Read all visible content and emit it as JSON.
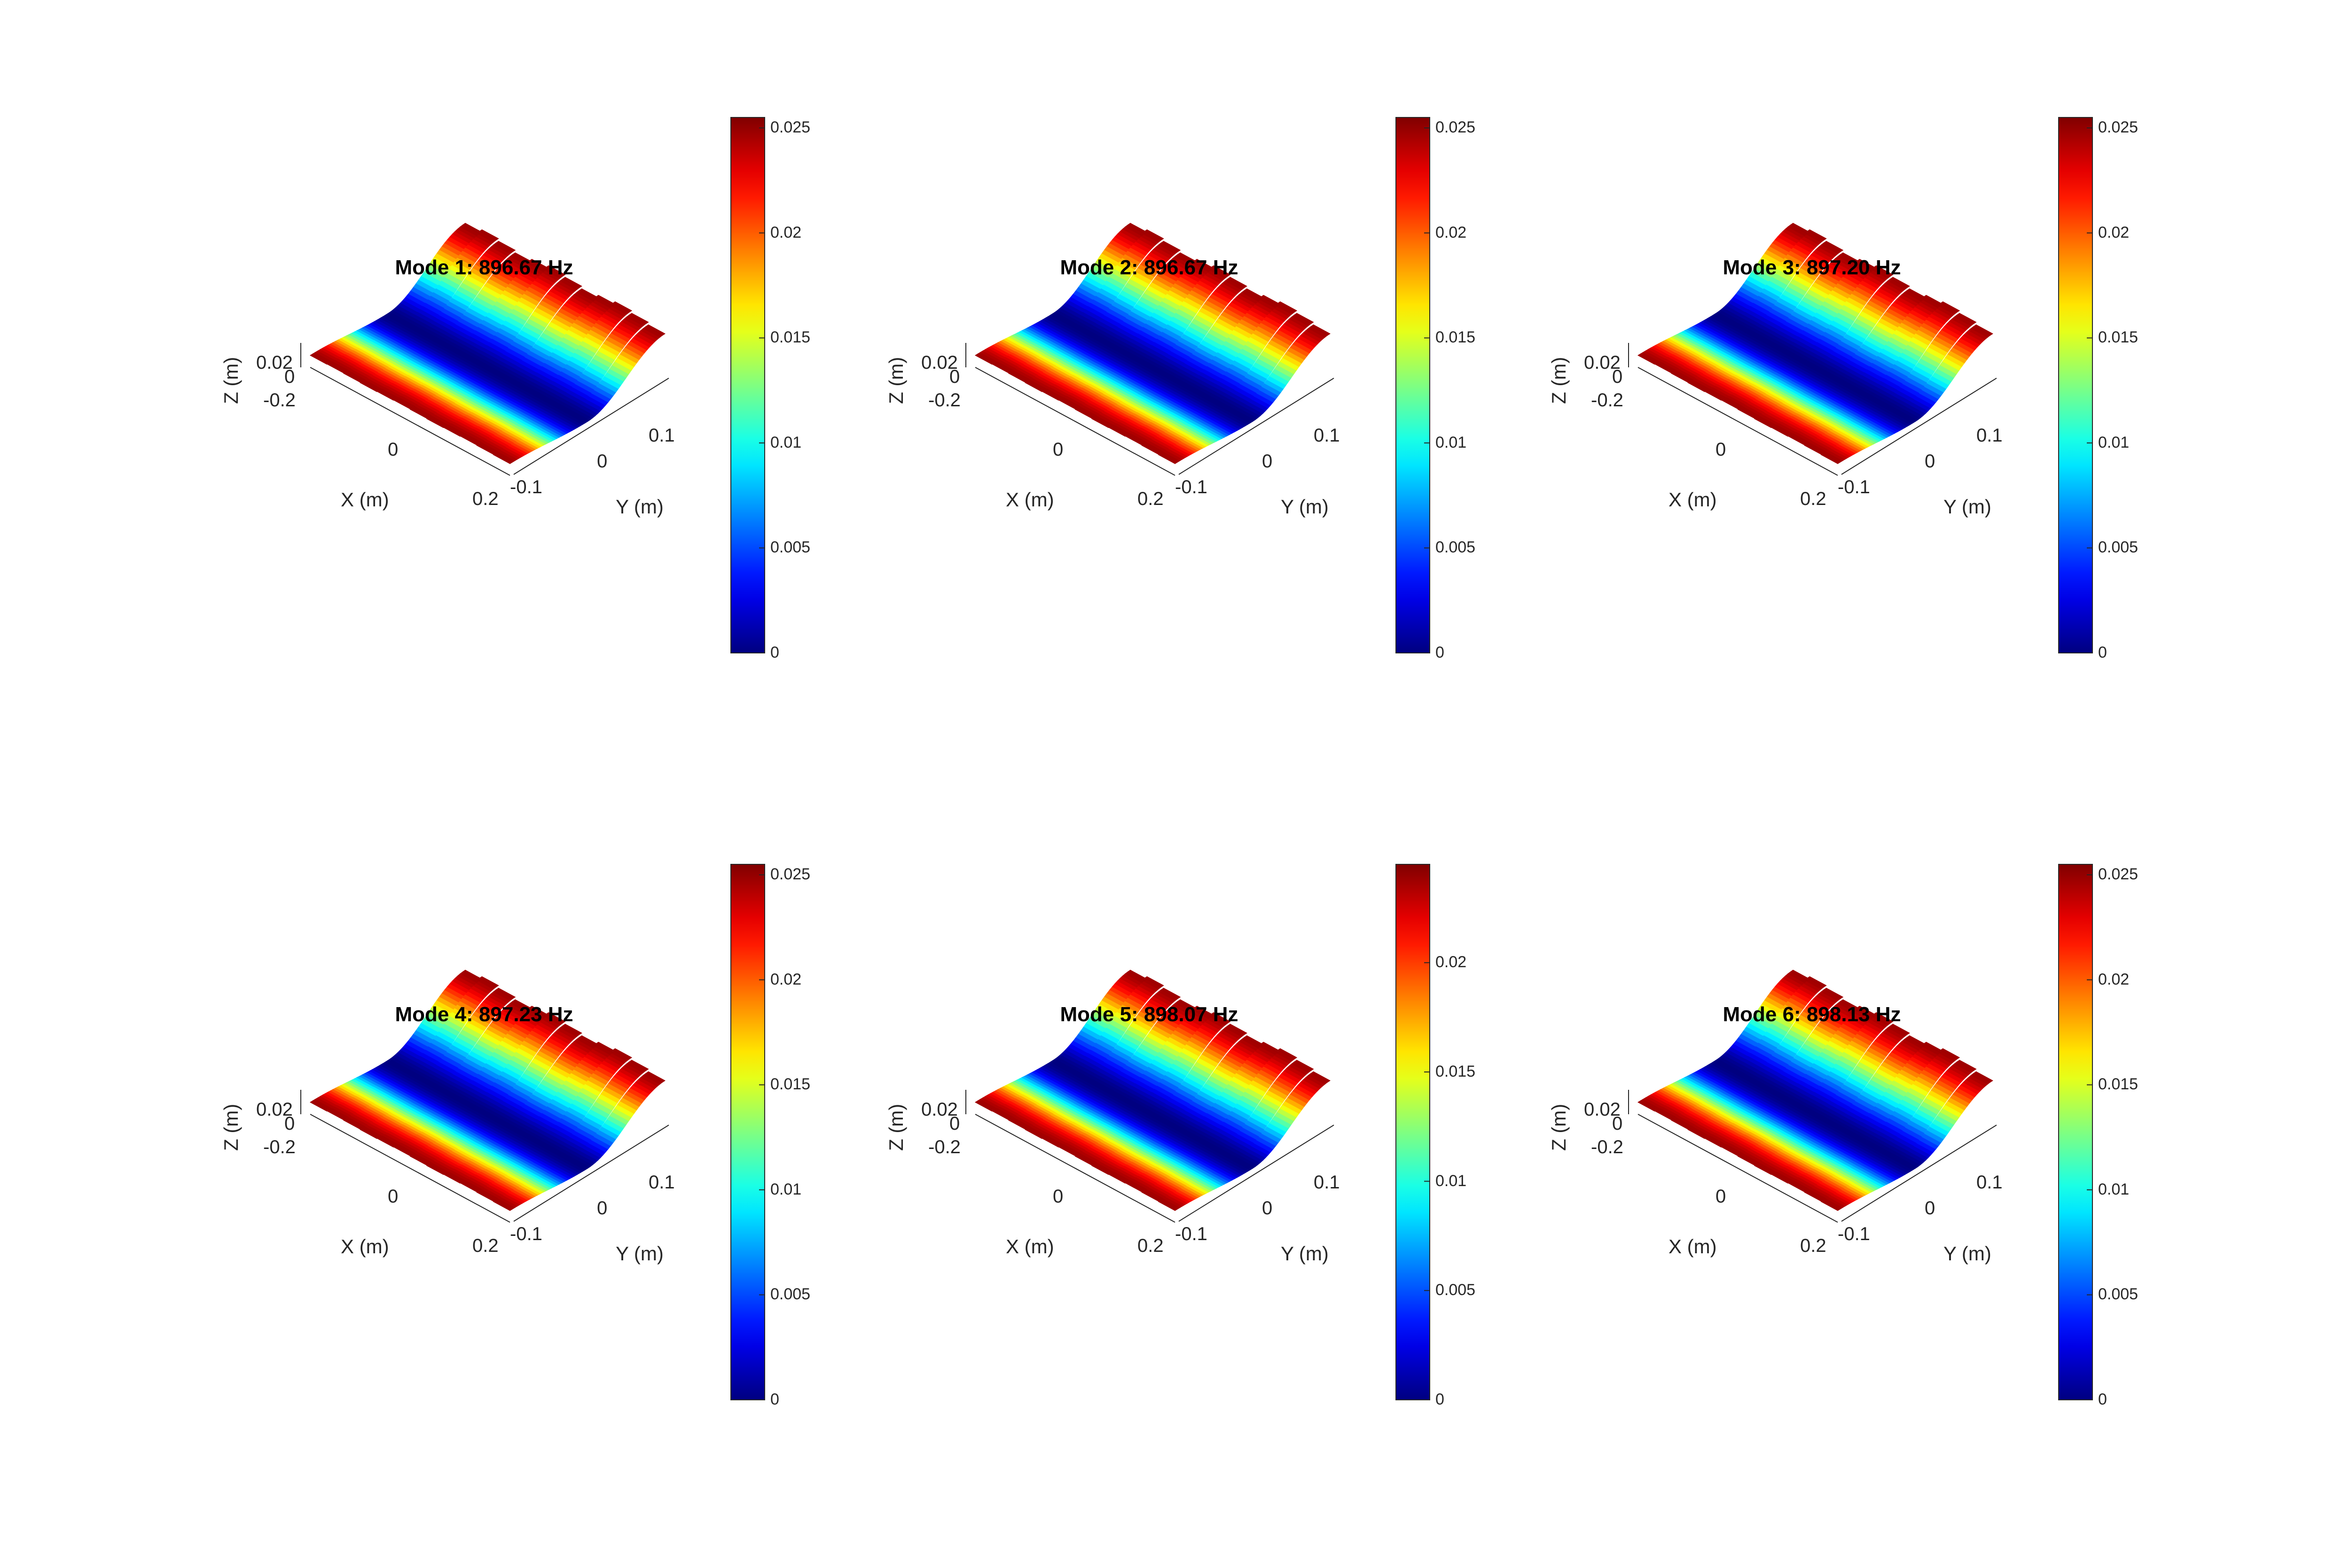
{
  "chart_data": [
    {
      "type": "heatmap",
      "title": "Mode 1: 896.67 Hz",
      "xlabel": "X (m)",
      "ylabel": "Y (m)",
      "zlabel": "Z (m)",
      "x_ticks": [
        "-0.2",
        "0",
        "0.2"
      ],
      "y_ticks": [
        "-0.1",
        "0",
        "0.1"
      ],
      "z_ticks": [
        "0",
        "0.02"
      ],
      "colorbar": {
        "min": 0,
        "max": 0.0255,
        "ticks": [
          "0",
          "0.005",
          "0.01",
          "0.015",
          "0.02",
          "0.025"
        ],
        "colormap": "jet"
      }
    },
    {
      "type": "heatmap",
      "title": "Mode 2: 896.67 Hz",
      "xlabel": "X (m)",
      "ylabel": "Y (m)",
      "zlabel": "Z (m)",
      "x_ticks": [
        "-0.2",
        "0",
        "0.2"
      ],
      "y_ticks": [
        "-0.1",
        "0",
        "0.1"
      ],
      "z_ticks": [
        "0",
        "0.02"
      ],
      "colorbar": {
        "min": 0,
        "max": 0.0255,
        "ticks": [
          "0",
          "0.005",
          "0.01",
          "0.015",
          "0.02",
          "0.025"
        ],
        "colormap": "jet"
      }
    },
    {
      "type": "heatmap",
      "title": "Mode 3: 897.20 Hz",
      "xlabel": "X (m)",
      "ylabel": "Y (m)",
      "zlabel": "Z (m)",
      "x_ticks": [
        "-0.2",
        "0",
        "0.2"
      ],
      "y_ticks": [
        "-0.1",
        "0",
        "0.1"
      ],
      "z_ticks": [
        "0",
        "0.02"
      ],
      "colorbar": {
        "min": 0,
        "max": 0.0255,
        "ticks": [
          "0",
          "0.005",
          "0.01",
          "0.015",
          "0.02",
          "0.025"
        ],
        "colormap": "jet"
      }
    },
    {
      "type": "heatmap",
      "title": "Mode 4: 897.23 Hz",
      "xlabel": "X (m)",
      "ylabel": "Y (m)",
      "zlabel": "Z (m)",
      "x_ticks": [
        "-0.2",
        "0",
        "0.2"
      ],
      "y_ticks": [
        "-0.1",
        "0",
        "0.1"
      ],
      "z_ticks": [
        "0",
        "0.02"
      ],
      "colorbar": {
        "min": 0,
        "max": 0.0255,
        "ticks": [
          "0",
          "0.005",
          "0.01",
          "0.015",
          "0.02",
          "0.025"
        ],
        "colormap": "jet"
      }
    },
    {
      "type": "heatmap",
      "title": "Mode 5: 898.07 Hz",
      "xlabel": "X (m)",
      "ylabel": "Y (m)",
      "zlabel": "Z (m)",
      "x_ticks": [
        "-0.2",
        "0",
        "0.2"
      ],
      "y_ticks": [
        "-0.1",
        "0",
        "0.1"
      ],
      "z_ticks": [
        "0",
        "0.02"
      ],
      "colorbar": {
        "min": 0,
        "max": 0.0245,
        "ticks": [
          "0",
          "0.005",
          "0.01",
          "0.015",
          "0.02"
        ],
        "colormap": "jet"
      }
    },
    {
      "type": "heatmap",
      "title": "Mode 6: 898.13 Hz",
      "xlabel": "X (m)",
      "ylabel": "Y (m)",
      "zlabel": "Z (m)",
      "x_ticks": [
        "-0.2",
        "0",
        "0.2"
      ],
      "y_ticks": [
        "-0.1",
        "0",
        "0.1"
      ],
      "z_ticks": [
        "0",
        "0.02"
      ],
      "colorbar": {
        "min": 0,
        "max": 0.0255,
        "ticks": [
          "0",
          "0.005",
          "0.01",
          "0.015",
          "0.02",
          "0.025"
        ],
        "colormap": "jet"
      }
    }
  ]
}
